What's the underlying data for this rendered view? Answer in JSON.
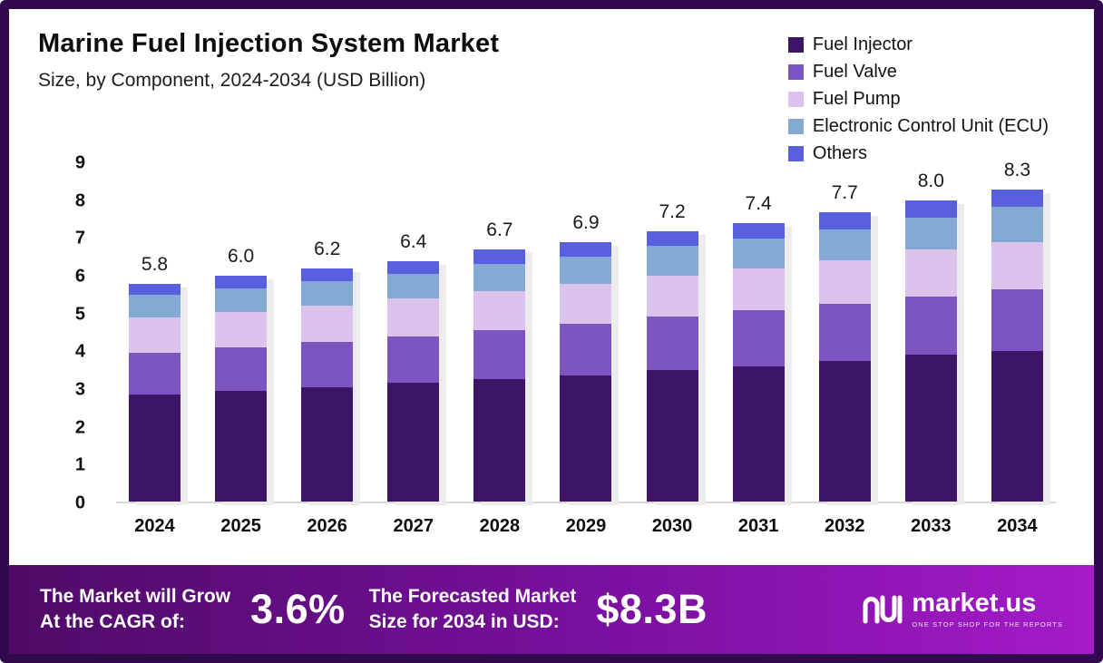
{
  "header": {
    "title": "Marine Fuel Injection System Market",
    "subtitle": "Size, by Component, 2024-2034 (USD Billion)"
  },
  "chart_data": {
    "type": "bar",
    "stacked": true,
    "title": "Marine Fuel Injection System Market Size, by Component, 2024-2034 (USD Billion)",
    "unit": "USD Billion",
    "categories": [
      "2024",
      "2025",
      "2026",
      "2027",
      "2028",
      "2029",
      "2030",
      "2031",
      "2032",
      "2033",
      "2034"
    ],
    "totals": [
      5.8,
      6.0,
      6.2,
      6.4,
      6.7,
      6.9,
      7.2,
      7.4,
      7.7,
      8.0,
      8.3
    ],
    "total_labels": [
      "5.8",
      "6.0",
      "6.2",
      "6.4",
      "6.7",
      "6.9",
      "7.2",
      "7.4",
      "7.7",
      "8.0",
      "8.3"
    ],
    "series": [
      {
        "name": "Fuel Injector",
        "color": "#3d1566",
        "values": [
          2.85,
          2.95,
          3.05,
          3.15,
          3.25,
          3.35,
          3.5,
          3.6,
          3.75,
          3.9,
          4.0
        ]
      },
      {
        "name": "Fuel Valve",
        "color": "#7d55c0",
        "values": [
          1.1,
          1.15,
          1.2,
          1.25,
          1.3,
          1.38,
          1.42,
          1.48,
          1.52,
          1.55,
          1.65
        ]
      },
      {
        "name": "Fuel Pump",
        "color": "#dbc3ee",
        "values": [
          0.95,
          0.95,
          0.97,
          1.0,
          1.05,
          1.05,
          1.1,
          1.12,
          1.15,
          1.25,
          1.25
        ]
      },
      {
        "name": "Electronic Control Unit (ECU)",
        "color": "#84a9d4",
        "values": [
          0.6,
          0.63,
          0.64,
          0.65,
          0.72,
          0.74,
          0.78,
          0.8,
          0.83,
          0.85,
          0.95
        ]
      },
      {
        "name": "Others",
        "color": "#5a5fdd",
        "values": [
          0.3,
          0.32,
          0.34,
          0.35,
          0.38,
          0.38,
          0.4,
          0.4,
          0.45,
          0.45,
          0.45
        ]
      }
    ],
    "ylim": [
      0,
      9
    ],
    "yticks": [
      0,
      1,
      2,
      3,
      4,
      5,
      6,
      7,
      8,
      9
    ],
    "legend_position": "top-right",
    "grid": false
  },
  "footer": {
    "cagr_label": "The Market will Grow\nAt the CAGR of:",
    "cagr_value": "3.6%",
    "forecast_label": "The Forecasted Market\nSize for 2034 in USD:",
    "forecast_value": "$8.3B",
    "brand": "market.us",
    "brand_tagline": "ONE STOP SHOP FOR THE REPORTS"
  }
}
